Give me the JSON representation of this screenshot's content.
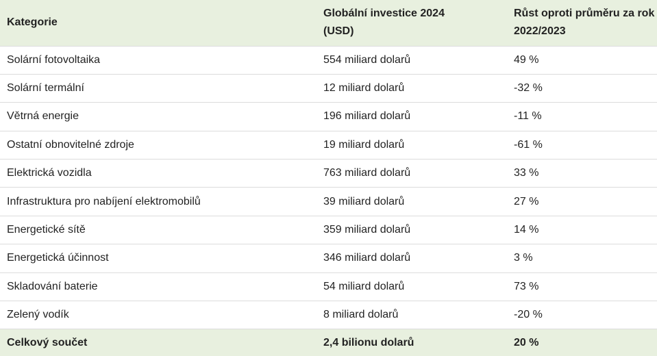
{
  "table": {
    "header": [
      "Kategorie",
      "Globální investice 2024 (USD)",
      "Růst oproti průměru za rok 2022/2023"
    ],
    "rows": [
      [
        "Solární fotovoltaika",
        "554 miliard dolarů",
        "49 %"
      ],
      [
        "Solární termální",
        "12 miliard dolarů",
        "-32 %"
      ],
      [
        "Větrná energie",
        "196 miliard dolarů",
        "-11 %"
      ],
      [
        "Ostatní obnovitelné zdroje",
        "19 miliard dolarů",
        "-61 %"
      ],
      [
        "Elektrická vozidla",
        "763 miliard dolarů",
        "33 %"
      ],
      [
        "Infrastruktura pro nabíjení elektromobilů",
        "39 miliard dolarů",
        "27 %"
      ],
      [
        "Energetické sítě",
        "359 miliard dolarů",
        "14 %"
      ],
      [
        "Energetická účinnost",
        "346 miliard dolarů",
        "3 %"
      ],
      [
        "Skladování baterie",
        "54 miliard dolarů",
        "73 %"
      ],
      [
        "Zelený vodík",
        "8 miliard dolarů",
        "-20 %"
      ]
    ],
    "total": [
      "Celkový součet",
      "2,4 bilionu dolarů",
      "20 %"
    ]
  }
}
